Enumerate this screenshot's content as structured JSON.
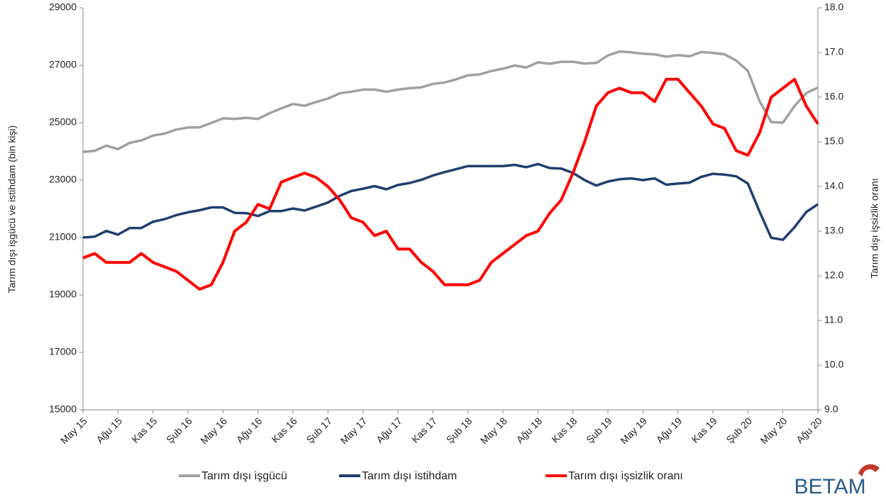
{
  "chart_data": {
    "type": "line",
    "ylabel": "Tarım dışı işgücü ve istihdam (bin kişi)",
    "y2label": "Tarım dışı işsizlik oranı",
    "logo": "BETAM",
    "categories": [
      "May 15",
      null,
      null,
      "Ağu 15",
      null,
      null,
      "Kas 15",
      null,
      null,
      "Şub 16",
      null,
      null,
      "May 16",
      null,
      null,
      "Ağu 16",
      null,
      null,
      "Kas 16",
      null,
      null,
      "Şub 17",
      null,
      null,
      "May 17",
      null,
      null,
      "Ağu 17",
      null,
      null,
      "Kas 17",
      null,
      null,
      "Şub 18",
      null,
      null,
      "May 18",
      null,
      null,
      "Ağu 18",
      null,
      null,
      "Kas 18",
      null,
      null,
      "Şub 19",
      null,
      null,
      "May 19",
      null,
      null,
      "Ağu 19",
      null,
      null,
      "Kas 19",
      null,
      null,
      "Şub 20",
      null,
      null,
      "May 20",
      null,
      null,
      "Ağu 20"
    ],
    "series": [
      {
        "name": "Tarım dışı işgücü",
        "color": "#a0a0a0",
        "values": [
          23980,
          24020,
          24200,
          24080,
          24300,
          24380,
          24550,
          24620,
          24760,
          24830,
          24840,
          24990,
          25150,
          25130,
          25170,
          25130,
          25330,
          25500,
          25650,
          25590,
          25720,
          25840,
          26020,
          26080,
          26150,
          26150,
          26080,
          26150,
          26200,
          26230,
          26350,
          26400,
          26510,
          26650,
          26680,
          26800,
          26880,
          26990,
          26920,
          27100,
          27050,
          27120,
          27120,
          27060,
          27080,
          27340,
          27480,
          27450,
          27400,
          27380,
          27300,
          27350,
          27310,
          27460,
          27430,
          27380,
          27160,
          26800,
          25750,
          25020,
          25000,
          25580,
          26030,
          26220
        ]
      },
      {
        "name": "Tarım dışı istihdam",
        "color": "#1f3f6e",
        "values": [
          21000,
          21030,
          21230,
          21100,
          21330,
          21330,
          21550,
          21640,
          21780,
          21880,
          21950,
          22050,
          22050,
          21860,
          21850,
          21750,
          21920,
          21920,
          22010,
          21940,
          22080,
          22220,
          22450,
          22620,
          22700,
          22790,
          22680,
          22830,
          22900,
          23010,
          23160,
          23280,
          23380,
          23490,
          23490,
          23490,
          23490,
          23530,
          23450,
          23560,
          23420,
          23400,
          23250,
          23000,
          22810,
          22950,
          23030,
          23060,
          23000,
          23060,
          22840,
          22880,
          22910,
          23110,
          23220,
          23190,
          23130,
          22880,
          21900,
          20990,
          20920,
          21360,
          21890,
          22160
        ]
      },
      {
        "name": "Tarım dışı işsizlik oranı",
        "color": "#ff0000",
        "axis": "y2",
        "values": [
          12.4,
          12.5,
          12.3,
          12.3,
          12.3,
          12.5,
          12.3,
          12.2,
          12.1,
          11.9,
          11.7,
          11.8,
          12.3,
          13.0,
          13.2,
          13.6,
          13.5,
          14.1,
          14.2,
          14.3,
          14.2,
          14.0,
          13.7,
          13.3,
          13.2,
          12.9,
          13.0,
          12.6,
          12.6,
          12.3,
          12.1,
          11.8,
          11.8,
          11.8,
          11.9,
          12.3,
          12.5,
          12.7,
          12.9,
          13.0,
          13.4,
          13.7,
          14.3,
          15.0,
          15.8,
          16.1,
          16.2,
          16.1,
          16.1,
          15.9,
          16.4,
          16.4,
          16.1,
          15.8,
          15.4,
          15.3,
          14.8,
          14.7,
          15.2,
          16.0,
          16.2,
          16.4,
          15.8,
          15.4
        ]
      }
    ],
    "ylim": [
      15000,
      29000
    ],
    "yticks": [
      15000,
      17000,
      19000,
      21000,
      23000,
      25000,
      27000,
      29000
    ],
    "y2lim": [
      9,
      18
    ],
    "y2ticks": [
      {
        "value": 9,
        "label": "9.0"
      },
      {
        "value": 10,
        "label": "10.0"
      },
      {
        "value": 11,
        "label": "11.0"
      },
      {
        "value": 12,
        "label": "12.0"
      },
      {
        "value": 13,
        "label": "13.0"
      },
      {
        "value": 14,
        "label": "14.0"
      },
      {
        "value": 15,
        "label": "15.0"
      },
      {
        "value": 16,
        "label": "16.0"
      },
      {
        "value": 17,
        "label": "17.0"
      },
      {
        "value": 18,
        "label": "18.0"
      }
    ],
    "grid": false,
    "legend": "bottom"
  }
}
